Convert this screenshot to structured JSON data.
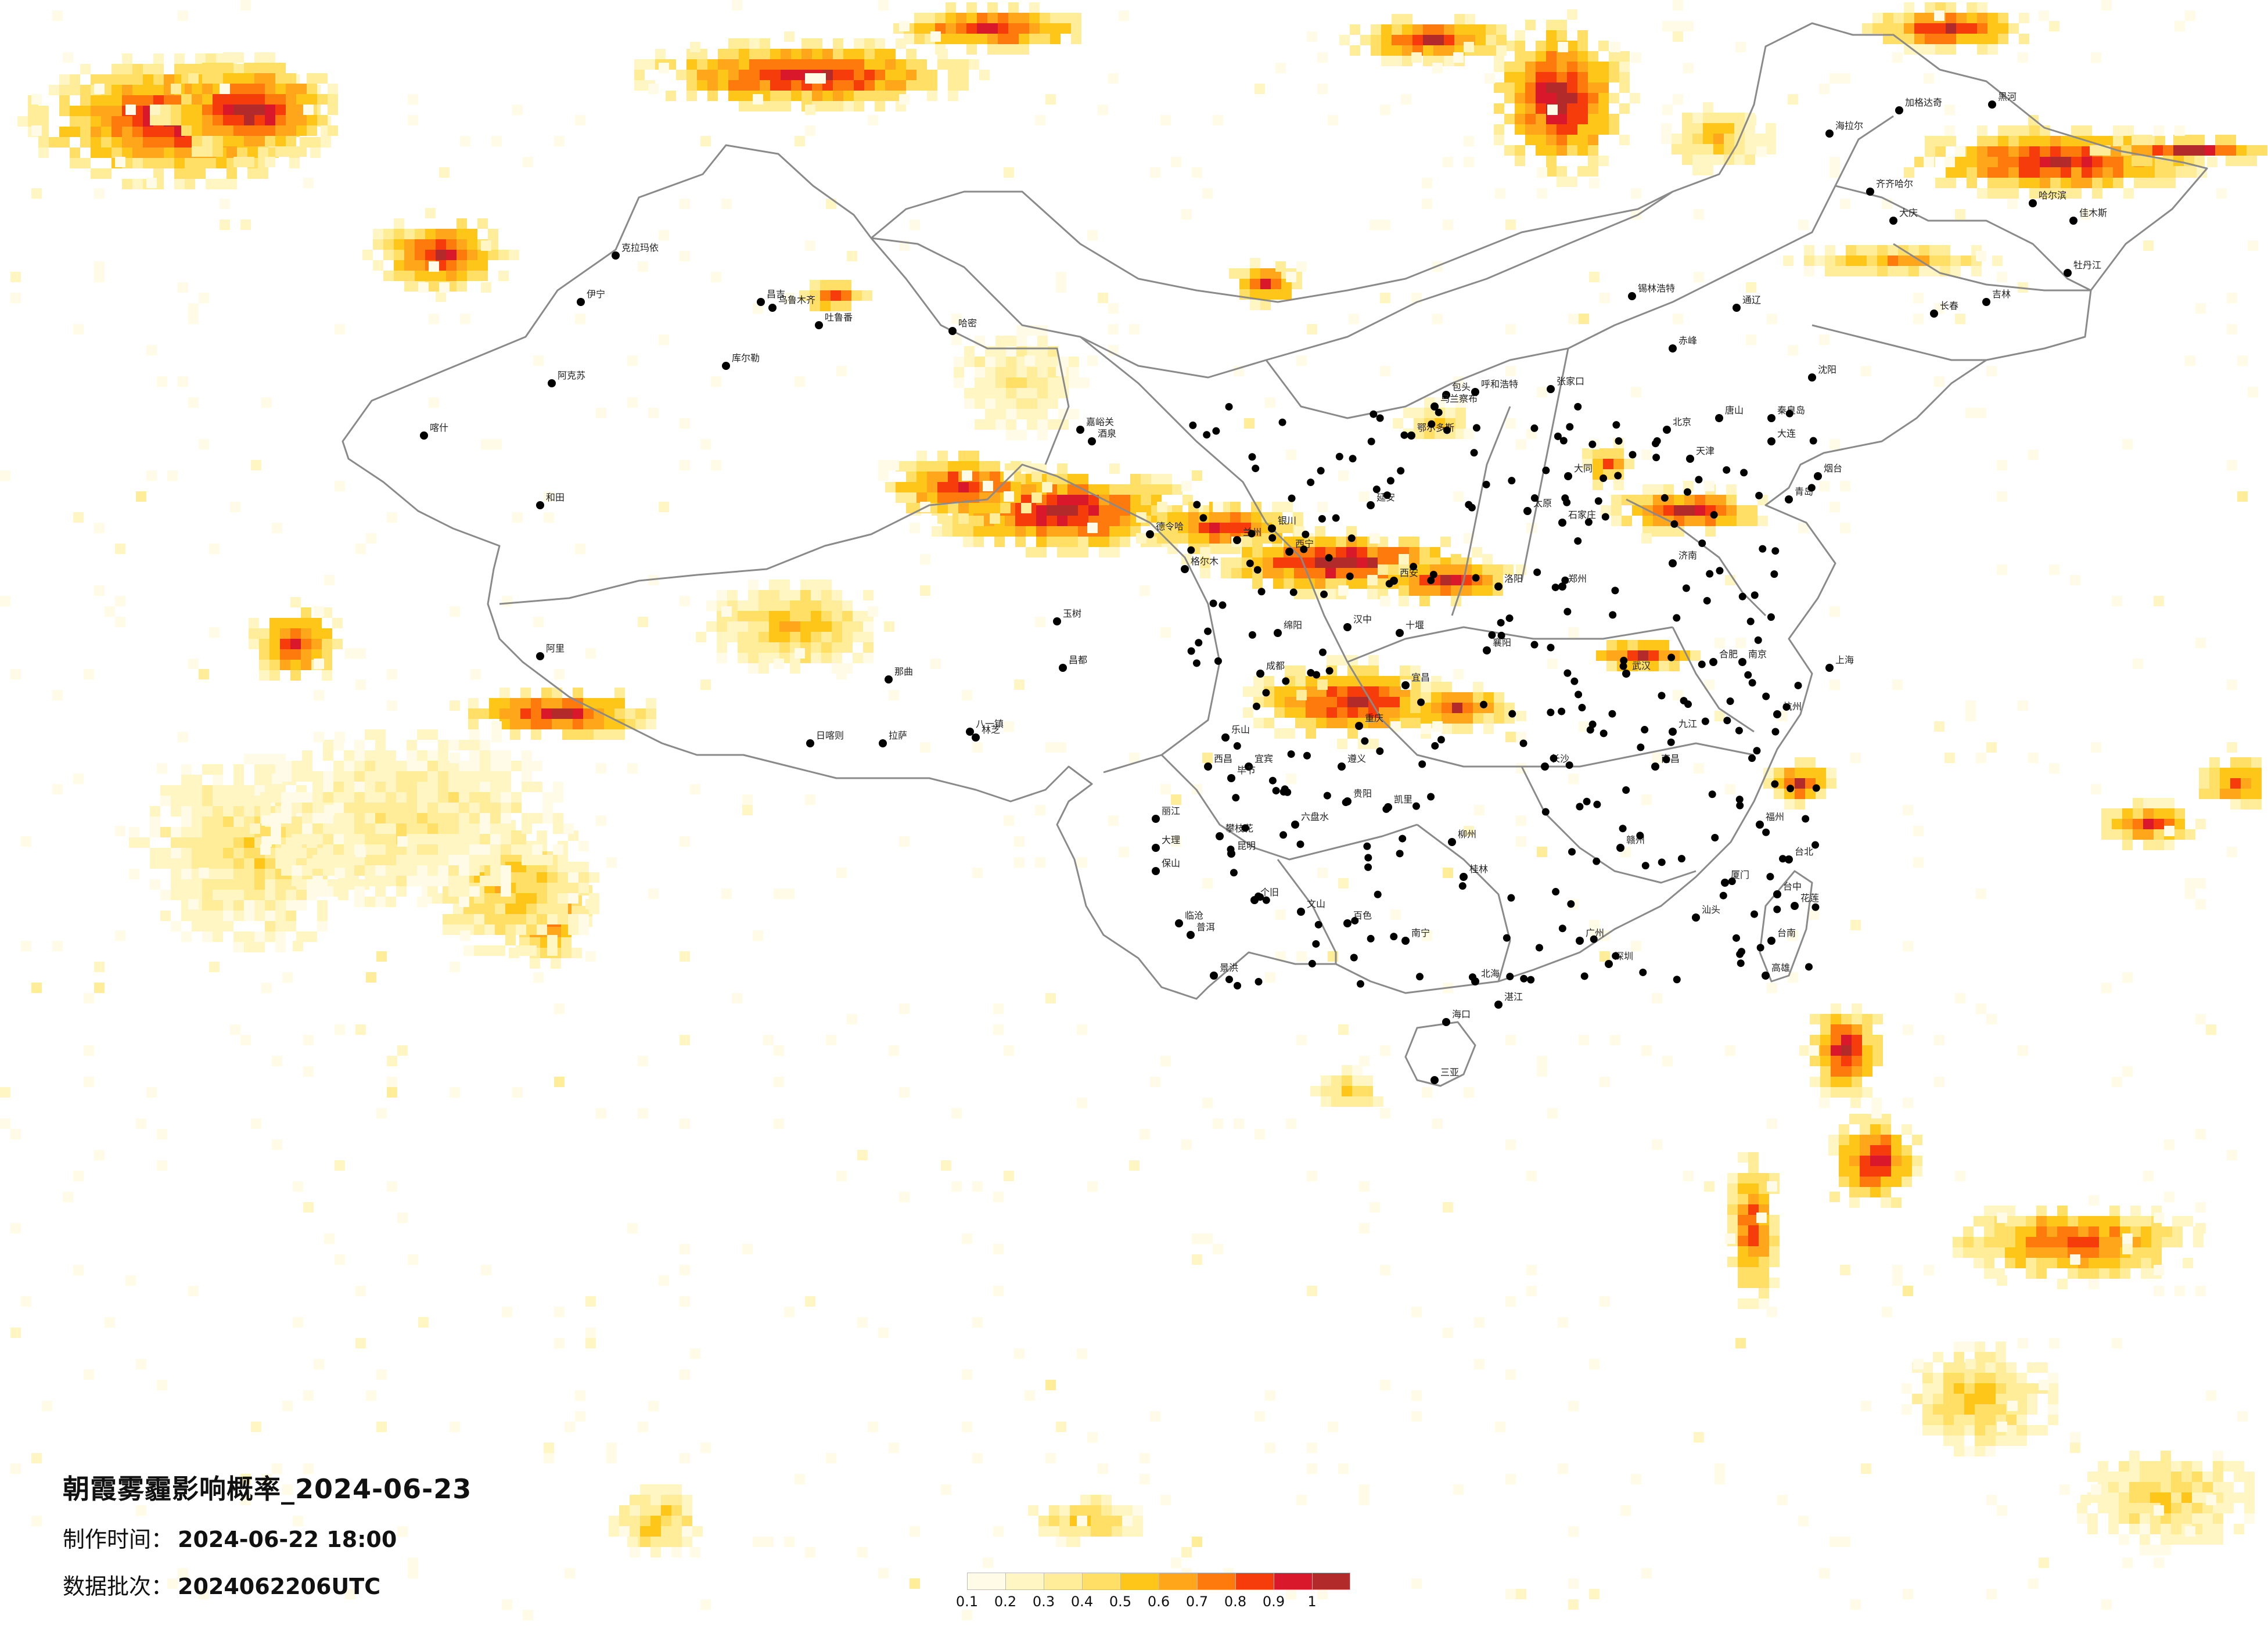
{
  "title": "朝霞雾霾影响概率_2024-06-23",
  "made_time_label": "制作时间：",
  "made_time_value": "2024-06-22 18:00",
  "batch_label": "数据批次：",
  "batch_value": "2024062206UTC",
  "legend": {
    "ticks": [
      "0.1",
      "0.2",
      "0.3",
      "0.4",
      "0.5",
      "0.6",
      "0.7",
      "0.8",
      "0.9",
      "1"
    ],
    "colors": [
      "#fffbe6",
      "#fff6c4",
      "#ffed99",
      "#ffdf66",
      "#ffc61a",
      "#ffa61a",
      "#ff7a0d",
      "#f53c0a",
      "#d9192b",
      "#b22a2a"
    ]
  },
  "cities": [
    "克拉玛依",
    "伊宁",
    "昌吉",
    "乌鲁木齐",
    "吐鲁番",
    "哈密",
    "库尔勒",
    "阿克苏",
    "喀什",
    "和田",
    "嘉峪关",
    "酒泉",
    "格尔木",
    "西宁",
    "德令哈",
    "玉树",
    "拉萨",
    "日喀则",
    "林芝",
    "八一镇",
    "阿里",
    "那曲",
    "昌都",
    "兰州",
    "银川",
    "呼和浩特",
    "包头",
    "鄂尔多斯",
    "乌兰察布",
    "北京",
    "天津",
    "石家庄",
    "太原",
    "大同",
    "西安",
    "延安",
    "郑州",
    "洛阳",
    "济南",
    "青岛",
    "烟台",
    "南京",
    "上海",
    "杭州",
    "合肥",
    "武汉",
    "长沙",
    "南昌",
    "福州",
    "厦门",
    "广州",
    "深圳",
    "南宁",
    "海口",
    "三亚",
    "成都",
    "重庆",
    "贵阳",
    "昆明",
    "大理",
    "丽江",
    "西昌",
    "绵阳",
    "汉中",
    "十堰",
    "宜昌",
    "襄阳",
    "沈阳",
    "大连",
    "长春",
    "吉林",
    "哈尔滨",
    "齐齐哈尔",
    "大庆",
    "佳木斯",
    "牡丹江",
    "黑河",
    "加格达奇",
    "海拉尔",
    "通辽",
    "赤峰",
    "锡林浩特",
    "张家口",
    "秦皇岛",
    "唐山",
    "台北",
    "台中",
    "高雄",
    "台南",
    "花莲",
    "桂林",
    "柳州",
    "百色",
    "北海",
    "湛江",
    "汕头",
    "赣州",
    "九江",
    "宜宾",
    "乐山",
    "遵义",
    "凯里",
    "六盘水",
    "毕节",
    "个旧",
    "文山",
    "临沧",
    "保山",
    "普洱",
    "景洪",
    "攀枝花"
  ]
}
